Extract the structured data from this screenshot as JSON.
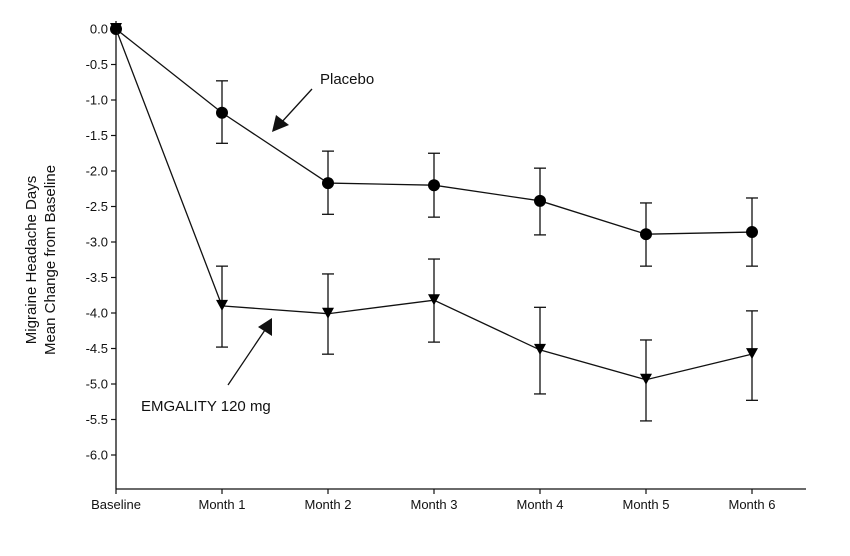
{
  "chart_data": {
    "type": "line",
    "title": "",
    "xlabel": "",
    "ylabel": [
      "Migraine Headache Days",
      "Mean Change from Baseline"
    ],
    "categories": [
      "Baseline",
      "Month 1",
      "Month 2",
      "Month 3",
      "Month 4",
      "Month 5",
      "Month 6"
    ],
    "yticks": [
      "0.0",
      "-0.5",
      "-1.0",
      "-1.5",
      "-2.0",
      "-2.5",
      "-3.0",
      "-3.5",
      "-4.0",
      "-4.5",
      "-5.0",
      "-5.5",
      "-6.0"
    ],
    "ylim": [
      -6.5,
      0
    ],
    "grid": false,
    "series": [
      {
        "name": "Placebo",
        "marker": "circle",
        "values": [
          0,
          -1.18,
          -2.17,
          -2.2,
          -2.42,
          -2.89,
          -2.86
        ],
        "error_upper": [
          0,
          -0.73,
          -1.72,
          -1.75,
          -1.96,
          -2.45,
          -2.38
        ],
        "error_lower": [
          0,
          -1.61,
          -2.61,
          -2.65,
          -2.9,
          -3.34,
          -3.34
        ]
      },
      {
        "name": "EMGALITY 120 mg",
        "marker": "triangle-down",
        "values": [
          0,
          -3.9,
          -4.01,
          -3.82,
          -4.52,
          -4.94,
          -4.58
        ],
        "error_upper": [
          0,
          -3.34,
          -3.45,
          -3.24,
          -3.92,
          -4.38,
          -3.97
        ],
        "error_lower": [
          0,
          -4.48,
          -4.58,
          -4.41,
          -5.14,
          -5.52,
          -5.23
        ]
      }
    ],
    "annotations": [
      "Placebo",
      "EMGALITY 120 mg"
    ]
  }
}
